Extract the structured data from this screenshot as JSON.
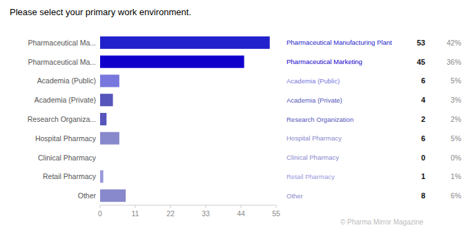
{
  "chart_data": {
    "type": "bar",
    "orientation": "horizontal",
    "title": "Please select your primary work environment.",
    "categories": [
      "Pharmaceutical Ma...",
      "Pharmaceutical Ma...",
      "Academia (Public)",
      "Academia (Private)",
      "Research Organiza...",
      "Hospital Pharmacy",
      "Clinical Pharmacy",
      "Retail Pharmacy",
      "Other"
    ],
    "values": [
      53,
      45,
      6,
      4,
      2,
      6,
      0,
      1,
      8
    ],
    "colors": [
      "#2222cc",
      "#1100cc",
      "#7777dd",
      "#5555bb",
      "#5555bb",
      "#8888cc",
      "#8888cc",
      "#9999dd",
      "#8888cc"
    ],
    "xlim": [
      0,
      55
    ],
    "xticks": [
      0,
      11,
      22,
      33,
      44,
      55
    ],
    "grid": false,
    "data_labels": true,
    "row_labels": [
      "Pharmaceutical Manufacturing Plant",
      "Pharmaceutical Marketing",
      "Academia (Public)",
      "Academia (Private)",
      "Research Organization",
      "Hospital Pharmacy",
      "Clinical Pharmacy",
      "Retail Pharmacy",
      "Other"
    ],
    "percent_labels": [
      "42%",
      "36%",
      "5%",
      "3%",
      "2%",
      "5%",
      "0%",
      "1%",
      "6%"
    ],
    "annotations": [
      "© Pharma Mirror Magazine"
    ]
  }
}
